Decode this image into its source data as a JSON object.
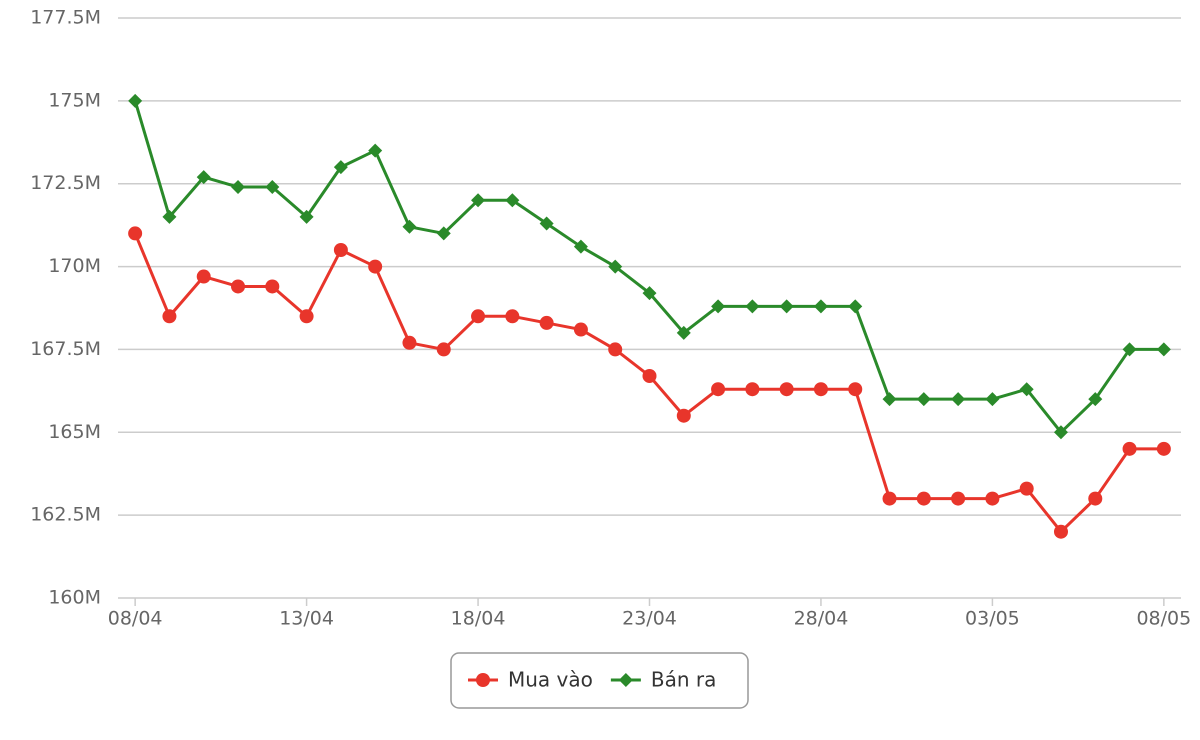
{
  "chart_data": {
    "type": "line",
    "categories": [
      "08/04",
      null,
      null,
      null,
      null,
      "13/04",
      null,
      null,
      null,
      null,
      "18/04",
      null,
      null,
      null,
      null,
      "23/04",
      null,
      null,
      null,
      null,
      "28/04",
      null,
      null,
      null,
      null,
      "03/05",
      null,
      null,
      null,
      null,
      "08/05"
    ],
    "series": [
      {
        "name": "Mua vào",
        "color": "#e8352b",
        "marker": "circle",
        "values": [
          171.0,
          168.5,
          169.7,
          169.4,
          169.4,
          168.5,
          170.5,
          170.0,
          167.7,
          167.5,
          168.5,
          168.5,
          168.3,
          168.1,
          167.5,
          166.7,
          165.5,
          166.3,
          166.3,
          166.3,
          166.3,
          166.3,
          163.0,
          163.0,
          163.0,
          163.0,
          163.3,
          162.0,
          163.0,
          164.5,
          164.5
        ]
      },
      {
        "name": "Bán ra",
        "color": "#2a8a2a",
        "marker": "diamond",
        "values": [
          175.0,
          171.5,
          172.7,
          172.4,
          172.4,
          171.5,
          173.0,
          173.5,
          171.2,
          171.0,
          172.0,
          172.0,
          171.3,
          170.6,
          170.0,
          169.2,
          168.0,
          168.8,
          168.8,
          168.8,
          168.8,
          168.8,
          166.0,
          166.0,
          166.0,
          166.0,
          166.3,
          165.0,
          166.0,
          167.5,
          167.5
        ]
      }
    ],
    "ylim": [
      160,
      177.5
    ],
    "yticks": [
      {
        "value": 160,
        "label": "160M"
      },
      {
        "value": 162.5,
        "label": "162.5M"
      },
      {
        "value": 165,
        "label": "165M"
      },
      {
        "value": 167.5,
        "label": "167.5M"
      },
      {
        "value": 170,
        "label": "170M"
      },
      {
        "value": 172.5,
        "label": "172.5M"
      },
      {
        "value": 175,
        "label": "175M"
      },
      {
        "value": 177.5,
        "label": "177.5M"
      }
    ],
    "grid": true,
    "legend": "bottom"
  }
}
